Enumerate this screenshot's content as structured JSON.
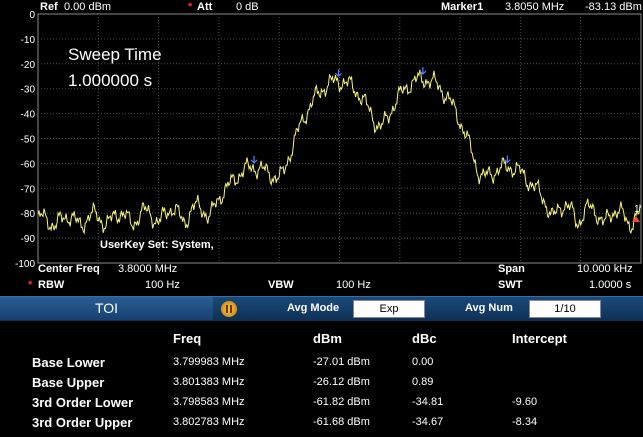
{
  "header": {
    "ref_label": "Ref",
    "ref_value": "0.00 dBm",
    "att_marker": "*",
    "att_label": "Att",
    "att_value": "0 dB",
    "marker_label": "Marker1",
    "marker_freq": "3.8050 MHz",
    "marker_level": "-83.13 dBm"
  },
  "overlay": {
    "sweep_time_label": "Sweep Time",
    "sweep_time_value": "1.000000 s",
    "userkey_text": "UserKey Set:  System,",
    "marker_number": "1"
  },
  "chart_data": {
    "type": "line",
    "y_ticks": [
      "0",
      "-10",
      "-20",
      "-30",
      "-40",
      "-50",
      "-60",
      "-70",
      "-80",
      "-90",
      "-100"
    ],
    "ylim": [
      -100,
      0
    ],
    "xlim": [
      3.795,
      3.805
    ],
    "x_unit": "MHz",
    "y_unit": "dBm",
    "grid": true,
    "trace_color": "#f5f57a",
    "peaks": [
      {
        "x": 3.798583,
        "y": -61.82
      },
      {
        "x": 3.799983,
        "y": -27.01
      },
      {
        "x": 3.801383,
        "y": -26.12
      },
      {
        "x": 3.802783,
        "y": -61.68
      }
    ],
    "noise_floor": -86
  },
  "status": {
    "center_label": "Center Freq",
    "center_value": "3.8000 MHz",
    "span_label": "Span",
    "span_value": "10.000 kHz",
    "rbw_marker": "*",
    "rbw_label": "RBW",
    "rbw_value": "100 Hz",
    "vbw_label": "VBW",
    "vbw_value": "100 Hz",
    "swt_label": "SWT",
    "swt_value": "1.0000 s"
  },
  "toolbar": {
    "tab_label": "TOI",
    "avg_mode_label": "Avg Mode",
    "avg_mode_value": "Exp",
    "avg_num_label": "Avg Num",
    "avg_num_value": "1/10"
  },
  "results": {
    "headers": [
      "Freq",
      "dBm",
      "dBc",
      "Intercept"
    ],
    "rows": [
      {
        "name": "Base Lower",
        "freq": "3.799983 MHz",
        "dbm": "-27.01 dBm",
        "dbc": "0.00",
        "intercept": ""
      },
      {
        "name": "Base Upper",
        "freq": "3.801383 MHz",
        "dbm": "-26.12 dBm",
        "dbc": "0.89",
        "intercept": ""
      },
      {
        "name": "3rd Order Lower",
        "freq": "3.798583 MHz",
        "dbm": "-61.82 dBm",
        "dbc": "-34.81",
        "intercept": "-9.60"
      },
      {
        "name": "3rd Order Upper",
        "freq": "3.802783 MHz",
        "dbm": "-61.68 dBm",
        "dbc": "-34.67",
        "intercept": "-8.34"
      }
    ]
  }
}
